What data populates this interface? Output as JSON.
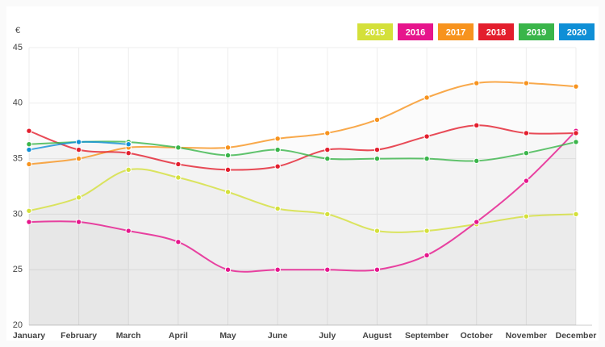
{
  "chart_data": {
    "type": "line",
    "y_label": "€",
    "categories": [
      "January",
      "February",
      "March",
      "April",
      "May",
      "June",
      "July",
      "August",
      "September",
      "October",
      "November",
      "December"
    ],
    "series": [
      {
        "name": "2015",
        "color": "#d4e03a",
        "values": [
          30.3,
          31.5,
          34,
          33.3,
          32,
          30.5,
          30,
          28.5,
          28.5,
          29.1,
          29.8,
          30
        ]
      },
      {
        "name": "2016",
        "color": "#e6158c",
        "values": [
          29.3,
          29.3,
          28.5,
          27.5,
          25,
          25,
          25,
          25,
          26.3,
          29.3,
          33,
          37.5
        ]
      },
      {
        "name": "2017",
        "color": "#f7931e",
        "values": [
          34.5,
          35,
          36,
          36,
          36,
          36.8,
          37.3,
          38.5,
          40.5,
          41.8,
          41.8,
          41.5
        ]
      },
      {
        "name": "2018",
        "color": "#e31e2d",
        "values": [
          37.5,
          35.8,
          35.5,
          34.5,
          34,
          34.3,
          35.8,
          35.8,
          37,
          38,
          37.3,
          37.3
        ]
      },
      {
        "name": "2019",
        "color": "#3ab54a",
        "values": [
          36.3,
          36.5,
          36.5,
          36,
          35.3,
          35.8,
          35,
          35,
          35,
          34.8,
          35.5,
          36.5
        ]
      },
      {
        "name": "2020",
        "color": "#0f8fd6",
        "values": [
          35.8,
          36.5,
          36.3,
          null,
          null,
          null,
          null,
          null,
          null,
          null,
          null,
          null
        ]
      }
    ],
    "ylim": [
      20,
      45
    ],
    "yticks": [
      20,
      25,
      30,
      35,
      40,
      45
    ],
    "grid": true,
    "legend": "top-right"
  }
}
